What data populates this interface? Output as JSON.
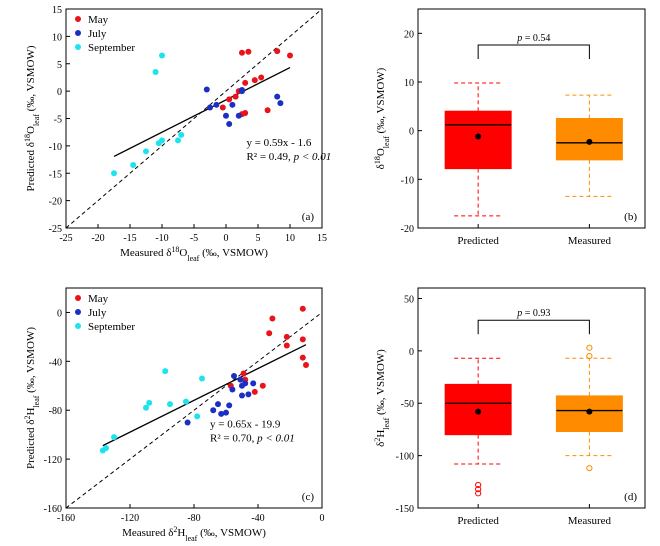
{
  "chart_data": [
    {
      "panel": "(a)",
      "type": "scatter",
      "xlabel": "Measured δ18Oleaf (‰, VSMOW)",
      "ylabel": "Predicted δ18Oleaf (‰, VSMOW)",
      "xlim": [
        -25,
        15
      ],
      "ylim": [
        -25,
        15
      ],
      "xticks": [
        "-25",
        "-20",
        "-15",
        "-10",
        "-5",
        "0",
        "5",
        "10",
        "15"
      ],
      "yticks": [
        "-25",
        "-20",
        "-15",
        "-10",
        "-5",
        "0",
        "5",
        "10",
        "15"
      ],
      "legend": [
        "May",
        "July",
        "September"
      ],
      "equation": "y = 0.59x - 1.6",
      "stats_r2": "R² = 0.49, ",
      "stats_p": "p < 0.01",
      "series": [
        {
          "name": "May",
          "color": "#e8131b",
          "x": [
            2.5,
            3.5,
            8,
            10,
            1.5,
            3,
            4.5,
            5.5,
            2,
            6.5,
            3,
            -0.5,
            2.5,
            0.5
          ],
          "y": [
            7,
            7.2,
            7.3,
            6.5,
            -1,
            1.5,
            2,
            2.5,
            0,
            -3.5,
            -4,
            -3,
            -4.2,
            -1.5
          ]
        },
        {
          "name": "July",
          "color": "#1c2fc4",
          "x": [
            -3,
            -1.5,
            0,
            2.5,
            1,
            -2.5,
            2,
            8,
            8.5,
            2.5,
            0.5
          ],
          "y": [
            0.3,
            -2.5,
            -4.5,
            0,
            -2.5,
            -3,
            -4.5,
            -1,
            -2.2,
            0.2,
            -6
          ]
        },
        {
          "name": "September",
          "color": "#1ee3ee",
          "x": [
            -11,
            -10,
            -7,
            -7.5,
            -10,
            -10.5,
            -12.5,
            -14.5,
            -17.5
          ],
          "y": [
            3.5,
            6.5,
            -8,
            -9,
            -9,
            -9.5,
            -11,
            -13.5,
            -15
          ]
        }
      ],
      "fit": {
        "slope": 0.59,
        "intercept": -1.6,
        "x_range": [
          -17.5,
          10
        ]
      }
    },
    {
      "panel": "(b)",
      "type": "box",
      "ylabel": "δ18Oleaf (‰, VSMOW)",
      "ylim": [
        -20,
        25
      ],
      "yticks": [
        "-20",
        "-10",
        "0",
        "10",
        "20"
      ],
      "categories": [
        "Predicted",
        "Measured"
      ],
      "pvalue_label": "p = 0.54",
      "boxes": [
        {
          "name": "Predicted",
          "color": "#ff0000",
          "q1": -7.8,
          "median": 1.2,
          "q3": 4,
          "mean": -1.2,
          "whisker_low": -17.5,
          "whisker_high": 9.8,
          "outliers": []
        },
        {
          "name": "Measured",
          "color": "#ff8c00",
          "q1": -6,
          "median": -2.5,
          "q3": 2.5,
          "mean": -2.3,
          "whisker_low": -13.5,
          "whisker_high": 7.3,
          "outliers": []
        }
      ]
    },
    {
      "panel": "(c)",
      "type": "scatter",
      "xlabel": "Measured δ2Hleaf (‰, VSMOW)",
      "ylabel": "Predicted δ2Hleaf (‰, VSMOW)",
      "xlim": [
        -160,
        0
      ],
      "ylim": [
        -160,
        20
      ],
      "xticks": [
        "-160",
        "-120",
        "-80",
        "-40",
        "0"
      ],
      "yticks": [
        "-160",
        "-120",
        "-80",
        "-40",
        "0"
      ],
      "legend": [
        "May",
        "July",
        "September"
      ],
      "equation": "y = 0.65x - 19.9",
      "stats_r2": "R² = 0.70, ",
      "stats_p": "p < 0.01",
      "series": [
        {
          "name": "May",
          "color": "#e8131b",
          "x": [
            -31,
            -33,
            -12,
            -12,
            -22,
            -22,
            -12,
            -10,
            -49,
            -48,
            -37,
            -57,
            -42
          ],
          "y": [
            -5,
            -17,
            3,
            -22,
            -20,
            -27,
            -37,
            -43,
            -50,
            -55,
            -60,
            -60,
            -65
          ]
        },
        {
          "name": "July",
          "color": "#1c2fc4",
          "x": [
            -55,
            -51,
            -48,
            -43,
            -46,
            -50,
            -56,
            -58,
            -65,
            -68,
            -60,
            -63,
            -84,
            -50
          ],
          "y": [
            -52,
            -55,
            -58,
            -58,
            -67,
            -68,
            -63,
            -76,
            -75,
            -80,
            -82,
            -83,
            -90,
            -60
          ]
        },
        {
          "name": "September",
          "color": "#1ee3ee",
          "x": [
            -98,
            -75,
            -108,
            -110,
            -95,
            -85,
            -78,
            -130,
            -135,
            -137
          ],
          "y": [
            -48,
            -54,
            -74,
            -78,
            -75,
            -73,
            -85,
            -102,
            -111,
            -113
          ]
        }
      ],
      "fit": {
        "slope": 0.65,
        "intercept": -19.9,
        "x_range": [
          -137,
          -10
        ]
      }
    },
    {
      "panel": "(d)",
      "type": "box",
      "ylabel": "δ2Hleaf (‰, VSMOW)",
      "ylim": [
        -150,
        60
      ],
      "yticks": [
        "-150",
        "-100",
        "-50",
        "0",
        "50"
      ],
      "categories": [
        "Predicted",
        "Measured"
      ],
      "pvalue_label": "p = 0.93",
      "boxes": [
        {
          "name": "Predicted",
          "color": "#ff0000",
          "q1": -80,
          "median": -50,
          "q3": -32,
          "mean": -58,
          "whisker_low": -108,
          "whisker_high": -7,
          "outliers": [
            -128,
            -132,
            -136
          ]
        },
        {
          "name": "Measured",
          "color": "#ff8c00",
          "q1": -77,
          "median": -57,
          "q3": -43,
          "mean": -58,
          "whisker_low": -100,
          "whisker_high": -7,
          "outliers": [
            3,
            -5,
            -112
          ]
        }
      ]
    }
  ]
}
